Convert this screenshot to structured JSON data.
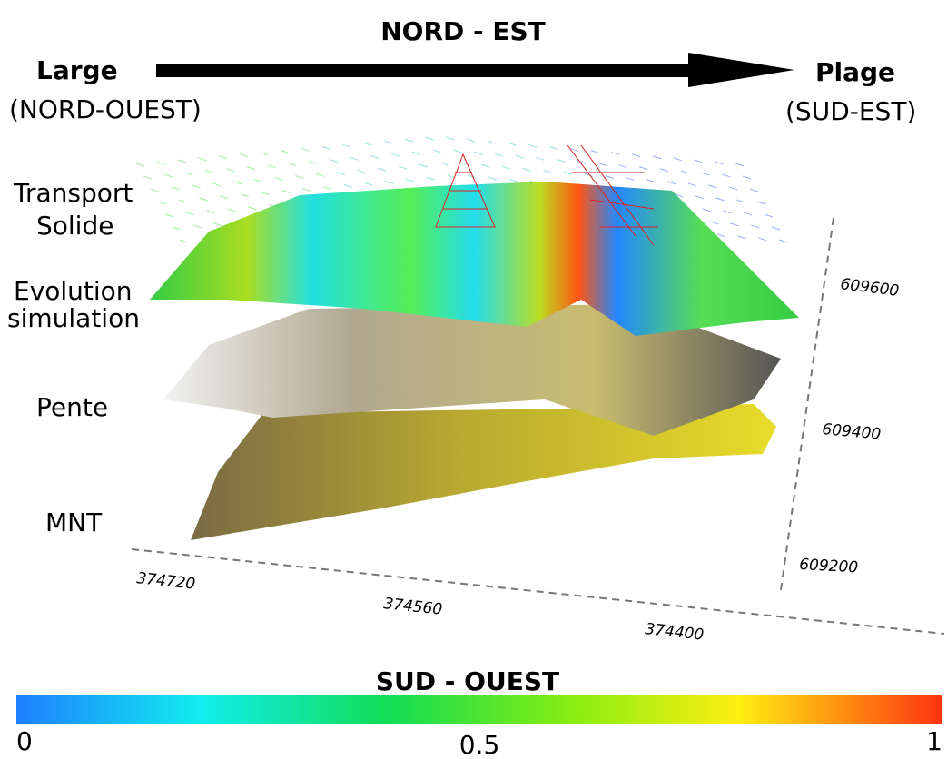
{
  "header": {
    "direction_top": "NORD - EST",
    "left_title": "Large",
    "left_subtitle": "(NORD-OUEST)",
    "right_title": "Plage",
    "right_subtitle": "(SUD-EST)"
  },
  "layers": [
    {
      "label": [
        "Transport",
        "Solide"
      ]
    },
    {
      "label": [
        "Evolution",
        "simulation"
      ]
    },
    {
      "label": [
        "Pente"
      ]
    },
    {
      "label": [
        "MNT"
      ]
    }
  ],
  "axes": {
    "y_labels": [
      609600,
      609400,
      609200
    ],
    "x_labels": [
      374720,
      374560,
      374400
    ]
  },
  "colorbar": {
    "title": "SUD - OUEST",
    "range": [
      0,
      1
    ],
    "ticks": [
      0,
      0.5,
      1
    ]
  }
}
